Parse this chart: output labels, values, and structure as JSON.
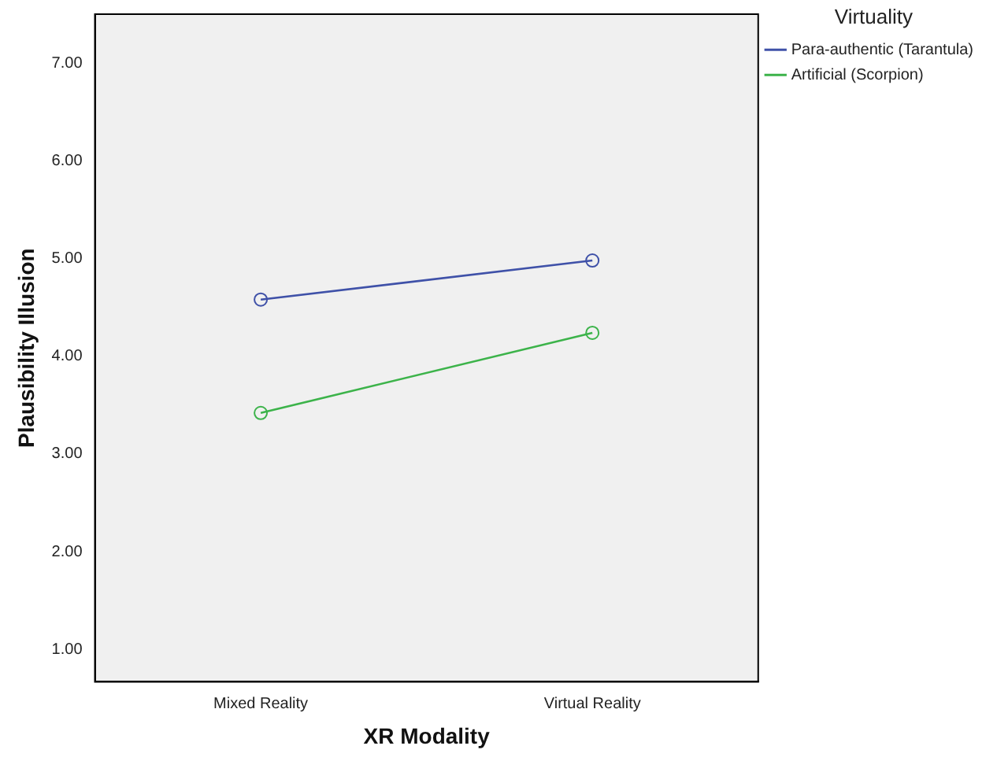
{
  "chart_data": {
    "type": "line",
    "xlabel": "XR Modality",
    "ylabel": "Plausibility Illusion",
    "legend_title": "Virtuality",
    "categories": [
      "Mixed Reality",
      "Virtual Reality"
    ],
    "series": [
      {
        "name": "Para-authentic (Tarantula)",
        "color": "#3f51a8",
        "values": [
          4.58,
          4.98
        ]
      },
      {
        "name": "Artificial (Scorpion)",
        "color": "#3cb34a",
        "values": [
          3.42,
          4.24
        ]
      }
    ],
    "ylim": [
      0.67,
      7.5
    ],
    "yticks": [
      {
        "value": 1,
        "label": "1.00"
      },
      {
        "value": 2,
        "label": "2.00"
      },
      {
        "value": 3,
        "label": "3.00"
      },
      {
        "value": 4,
        "label": "4.00"
      },
      {
        "value": 5,
        "label": "5.00"
      },
      {
        "value": 6,
        "label": "6.00"
      },
      {
        "value": 7,
        "label": "7.00"
      }
    ],
    "grid": false,
    "legend": "top right",
    "marker": "circle",
    "line_style": "solid"
  }
}
